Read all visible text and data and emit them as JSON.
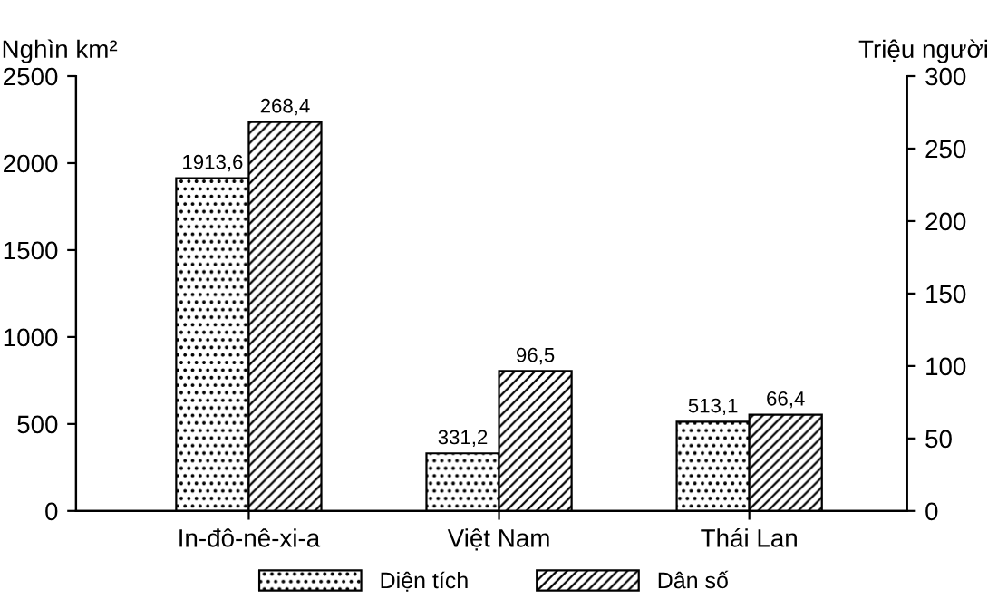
{
  "chart_data": {
    "type": "bar",
    "ylabel": "Nghìn km²",
    "y2label": "Triệu người",
    "categories": [
      "In-đô-nê-xi-a",
      "Việt Nam",
      "Thái Lan"
    ],
    "series": [
      {
        "name": "Diện tích",
        "color": "#000000",
        "values": [
          1913.6,
          331.2,
          513.1
        ],
        "value_labels": [
          "1913,6",
          "331,2",
          "513,1"
        ]
      },
      {
        "name": "Dân số",
        "color": "#000000",
        "axis": "y2",
        "values": [
          268.4,
          96.5,
          66.4
        ],
        "value_labels": [
          "268,4",
          "96,5",
          "66,4"
        ]
      }
    ],
    "ylim": [
      0,
      2500
    ],
    "yticks": [
      0,
      500,
      1000,
      1500,
      2000,
      2500
    ],
    "y2lim": [
      0,
      300
    ],
    "y2ticks": [
      0,
      50,
      100,
      150,
      200,
      250,
      300
    ],
    "grid": false,
    "legend": "bottom"
  }
}
